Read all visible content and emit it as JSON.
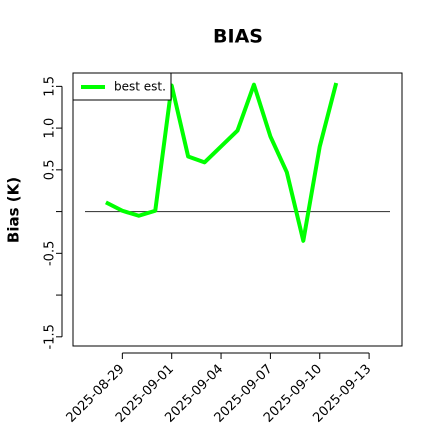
{
  "chart_data": {
    "type": "line",
    "title": "BIAS",
    "y_label": "Bias (K)",
    "x": [
      "2025-08-28",
      "2025-08-29",
      "2025-08-30",
      "2025-08-31",
      "2025-09-01",
      "2025-09-02",
      "2025-09-03",
      "2025-09-04",
      "2025-09-05",
      "2025-09-06",
      "2025-09-07",
      "2025-09-08",
      "2025-09-09",
      "2025-09-10",
      "2025-09-11"
    ],
    "series": [
      {
        "name": "best est.",
        "color": "#00ff00",
        "values": [
          0.11,
          0.01,
          -0.05,
          0.01,
          1.51,
          0.66,
          0.59,
          0.78,
          0.97,
          1.52,
          0.9,
          0.47,
          -0.35,
          0.78,
          1.54
        ]
      }
    ],
    "xlim": [
      "2025-08-26",
      "2025-09-15"
    ],
    "xticks": [
      "2025-08-29",
      "2025-09-01",
      "2025-09-04",
      "2025-09-07",
      "2025-09-10",
      "2025-09-13"
    ],
    "ylim": [
      -1.61,
      1.66
    ],
    "yticks": [
      {
        "value": 1.5,
        "label": "1.5"
      },
      {
        "value": 1.0,
        "label": "1.0"
      },
      {
        "value": 0.5,
        "label": "0.5"
      },
      -0.5,
      -1.5
    ],
    "yticks_unlabeled": [
      0,
      -1
    ],
    "hline": 0,
    "legend": "topleft"
  }
}
